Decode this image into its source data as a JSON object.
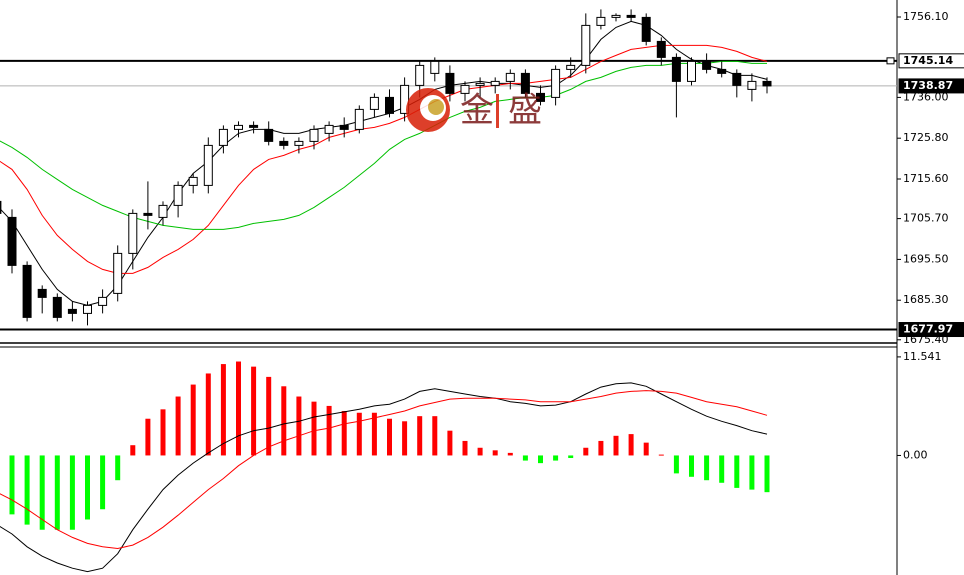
{
  "chart_data": [
    {
      "type": "candlestick",
      "watermark": "金盛",
      "open": [
        1710,
        1706,
        1694,
        1688,
        1686,
        1683,
        1682,
        1684,
        1687,
        1697,
        1707,
        1706,
        1709,
        1714,
        1714,
        1724,
        1728,
        1729,
        1728,
        1725,
        1724,
        1725,
        1727,
        1729,
        1728,
        1733,
        1736,
        1732,
        1739,
        1742,
        1742,
        1737,
        1739,
        1739,
        1740,
        1742,
        1737,
        1736,
        1743,
        1744,
        1754,
        1756,
        1756.5,
        1756,
        1750,
        1746,
        1740,
        1745,
        1743,
        1742,
        1738,
        1740
      ],
      "high": [
        1711,
        1708,
        1695,
        1689,
        1687,
        1685,
        1685,
        1688,
        1699,
        1708,
        1715,
        1710,
        1715,
        1717,
        1726,
        1729,
        1730,
        1730,
        1730,
        1726,
        1726,
        1729,
        1730,
        1731,
        1734,
        1737,
        1738,
        1741,
        1745,
        1746,
        1744,
        1740,
        1741,
        1741,
        1743,
        1743,
        1739,
        1744,
        1746,
        1757,
        1758,
        1757,
        1758,
        1757,
        1751,
        1747,
        1746,
        1747,
        1745,
        1743,
        1742,
        1741
      ],
      "low": [
        1706,
        1692,
        1680,
        1682,
        1680,
        1680,
        1679,
        1682,
        1685,
        1693,
        1703,
        1704,
        1706,
        1712,
        1712,
        1722,
        1726,
        1727,
        1724,
        1723,
        1722,
        1723,
        1725,
        1726,
        1727,
        1731,
        1731,
        1730,
        1736,
        1740,
        1735,
        1735,
        1736,
        1737,
        1738,
        1736,
        1734,
        1734,
        1741,
        1742,
        1753,
        1755,
        1755,
        1749,
        1744,
        1731,
        1739,
        1742,
        1741,
        1736,
        1735,
        1737
      ],
      "close": [
        1707,
        1694,
        1681,
        1686,
        1681,
        1682,
        1684,
        1686,
        1697,
        1707,
        1706.5,
        1709,
        1714,
        1716,
        1724,
        1728,
        1729,
        1728.5,
        1725,
        1724,
        1725,
        1728,
        1729,
        1728,
        1733,
        1736,
        1732,
        1739,
        1744,
        1745,
        1737,
        1739,
        1739.5,
        1740,
        1742,
        1737,
        1735,
        1743,
        1744,
        1754,
        1756,
        1756.5,
        1756,
        1750,
        1746,
        1740,
        1745,
        1743,
        1742,
        1739,
        1740,
        1738.87
      ],
      "up_color": "#ffffff",
      "down_color": "#000000",
      "lines": [
        {
          "color": "#000000",
          "values": [
            1709,
            1705,
            1699,
            1693,
            1688,
            1685,
            1684,
            1685,
            1689,
            1695,
            1701,
            1706,
            1712,
            1717,
            1720,
            1724,
            1727,
            1728,
            1728,
            1727,
            1727,
            1728,
            1728.5,
            1729,
            1730,
            1731,
            1732,
            1733.5,
            1735.5,
            1738,
            1739,
            1739.5,
            1740,
            1739.5,
            1739.5,
            1739,
            1738.5,
            1739,
            1741.5,
            1745.5,
            1750.5,
            1753.5,
            1755,
            1754,
            1751.5,
            1748,
            1745.5,
            1744,
            1743,
            1741.5,
            1741.5,
            1740.5
          ]
        },
        {
          "color": "#ff0000",
          "values": [
            1720.5,
            1718,
            1713,
            1706.5,
            1701.5,
            1698,
            1695,
            1693,
            1692,
            1692,
            1693.5,
            1696,
            1698,
            1700.5,
            1704,
            1709,
            1714,
            1718,
            1720.5,
            1721.5,
            1723,
            1724,
            1726,
            1727,
            1728,
            1728.5,
            1729.5,
            1731,
            1733,
            1735,
            1736.5,
            1738,
            1738.5,
            1739,
            1739.5,
            1739.5,
            1740,
            1740.5,
            1741,
            1743,
            1745,
            1746.5,
            1748,
            1748.5,
            1749,
            1749,
            1749,
            1749,
            1748.5,
            1747.5,
            1746,
            1745
          ]
        },
        {
          "color": "#00c000",
          "values": [
            1725.5,
            1723.5,
            1721,
            1718,
            1715.5,
            1713,
            1711,
            1709,
            1707.5,
            1706,
            1705,
            1704,
            1703.5,
            1703,
            1703,
            1703,
            1703.5,
            1704.5,
            1705,
            1705.5,
            1706.5,
            1708.5,
            1711,
            1713.5,
            1716.5,
            1719.5,
            1723,
            1725.5,
            1727,
            1729,
            1731,
            1732.5,
            1733.5,
            1735,
            1735.5,
            1736,
            1736,
            1736.5,
            1738,
            1740,
            1741,
            1742.5,
            1743.5,
            1744,
            1744,
            1744.5,
            1744.5,
            1744.5,
            1745,
            1745,
            1744.5,
            1744.5
          ]
        }
      ],
      "hlines": [
        1745.14,
        1677.97
      ],
      "last_price": 1738.87,
      "ylim": [
        1675.1,
        1760.35
      ],
      "yticks": [
        {
          "value": 1756.1,
          "label": "1756.10"
        },
        {
          "value": 1736,
          "label": "1736.00"
        },
        {
          "value": 1725.8,
          "label": "1725.80"
        },
        {
          "value": 1715.6,
          "label": "1715.60"
        },
        {
          "value": 1705.7,
          "label": "1705.70"
        },
        {
          "value": 1695.5,
          "label": "1695.50"
        },
        {
          "value": 1685.3,
          "label": "1685.30"
        },
        {
          "value": 1675.4,
          "label": "1675.40"
        }
      ]
    },
    {
      "type": "macd",
      "histogram": [
        -5.2,
        -6.9,
        -8.1,
        -8.7,
        -8.7,
        -8.7,
        -7.5,
        -6.3,
        -2.9,
        1.2,
        4.3,
        5.4,
        6.9,
        8.3,
        9.6,
        10.7,
        11,
        10.4,
        9.2,
        8.1,
        6.9,
        6.3,
        5.8,
        5.2,
        5,
        5,
        4.3,
        4,
        4.6,
        4.6,
        2.9,
        1.7,
        0.9,
        0.6,
        0.3,
        -0.6,
        -0.9,
        -0.6,
        -0.3,
        0.9,
        1.7,
        2.3,
        2.5,
        1.5,
        0.1,
        -2.1,
        -2.5,
        -2.9,
        -3.2,
        -3.8,
        -4,
        -4.3
      ],
      "up_color": "#ff0000",
      "down_color": "#00ff00",
      "lines": [
        {
          "color": "#000000",
          "values": [
            -8.1,
            -9.2,
            -10.7,
            -11.8,
            -12.6,
            -13.2,
            -13.6,
            -13.2,
            -11.5,
            -8.7,
            -6.3,
            -4,
            -2.3,
            -0.9,
            0.3,
            1.4,
            2.3,
            2.9,
            3.2,
            3.7,
            4,
            4.5,
            4.8,
            5.1,
            5.4,
            5.8,
            6,
            6.6,
            7.5,
            7.8,
            7.5,
            7.2,
            6.9,
            6.7,
            6.3,
            6.1,
            5.8,
            5.9,
            6.3,
            7.2,
            8,
            8.4,
            8.5,
            8.1,
            7.2,
            6.3,
            5.4,
            4.6,
            4,
            3.5,
            2.9,
            2.5
          ]
        },
        {
          "color": "#ff0000",
          "values": [
            -4.3,
            -5.2,
            -6.3,
            -7.5,
            -8.7,
            -9.6,
            -10.3,
            -10.7,
            -10.9,
            -10.5,
            -9.6,
            -8.4,
            -7,
            -5.5,
            -4,
            -2.7,
            -1.2,
            0,
            1,
            1.7,
            2.3,
            2.9,
            3.2,
            3.7,
            4,
            4.4,
            4.8,
            5.2,
            5.8,
            6.2,
            6.6,
            6.7,
            6.7,
            6.7,
            6.6,
            6.5,
            6.3,
            6.3,
            6.3,
            6.6,
            6.9,
            7.3,
            7.5,
            7.6,
            7.5,
            7.3,
            6.8,
            6.3,
            6,
            5.7,
            5.2,
            4.7
          ]
        }
      ],
      "ylim": [
        -14.0,
        12.7
      ],
      "yticks": [
        11.541,
        {
          "value": 0,
          "label": "0.00"
        }
      ]
    }
  ]
}
